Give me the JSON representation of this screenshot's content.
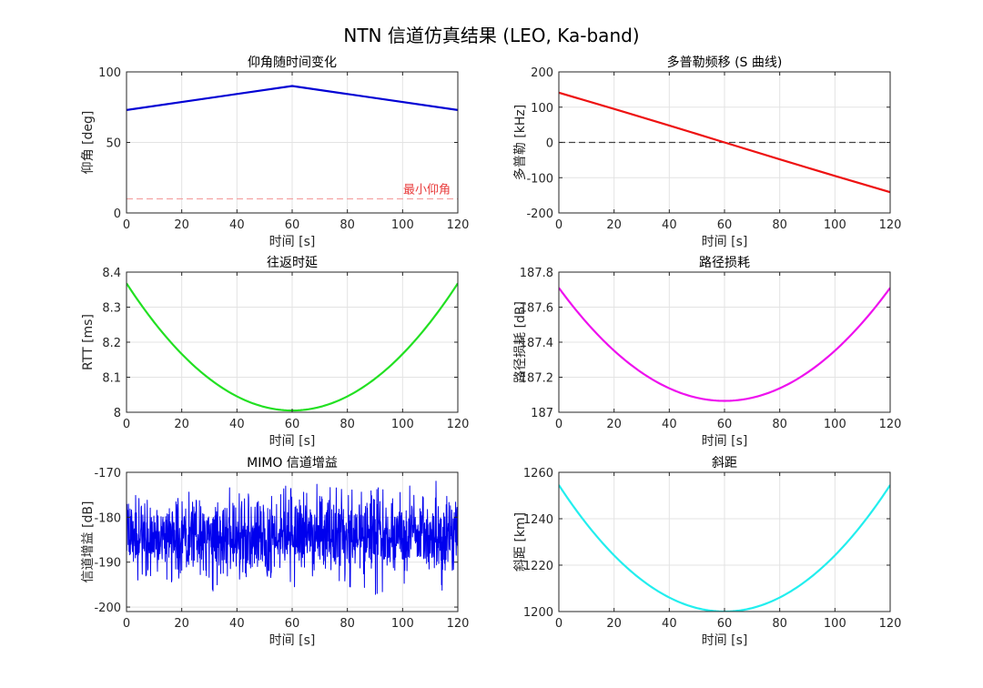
{
  "figure": {
    "title": "NTN 信道仿真结果 (LEO, Ka-band)"
  },
  "chart_data": [
    {
      "id": "elevation",
      "type": "line",
      "title": "仰角随时间变化",
      "xlabel": "时间 [s]",
      "ylabel": "仰角 [deg]",
      "xlim": [
        0,
        120
      ],
      "ylim": [
        0,
        100
      ],
      "xticks": [
        0,
        20,
        40,
        60,
        80,
        100,
        120
      ],
      "yticks": [
        0,
        50,
        100
      ],
      "grid": true,
      "series": [
        {
          "color": "#0000d4",
          "x": [
            0,
            60,
            120
          ],
          "y": [
            73,
            90,
            73
          ]
        }
      ],
      "reference_lines": [
        {
          "y": 10,
          "color": "#f4a3a3",
          "dash": "dashed",
          "label": "最小仰角",
          "label_color": "#e83b3b"
        }
      ]
    },
    {
      "id": "doppler",
      "type": "line",
      "title": "多普勒频移 (S 曲线)",
      "xlabel": "时间 [s]",
      "ylabel": "多普勒 [kHz]",
      "xlim": [
        0,
        120
      ],
      "ylim": [
        -200,
        200
      ],
      "xticks": [
        0,
        20,
        40,
        60,
        80,
        100,
        120
      ],
      "yticks": [
        -200,
        -100,
        0,
        100,
        200
      ],
      "grid": true,
      "series": [
        {
          "color": "#ee1111",
          "x": [
            0,
            20,
            40,
            60,
            80,
            100,
            120
          ],
          "y": [
            141,
            95,
            48,
            0,
            -48,
            -95,
            -141
          ]
        }
      ],
      "reference_lines": [
        {
          "y": 0,
          "color": "#444444",
          "dash": "dashed"
        }
      ]
    },
    {
      "id": "rtt",
      "type": "line",
      "title": "往返时延",
      "xlabel": "时间 [s]",
      "ylabel": "RTT [ms]",
      "xlim": [
        0,
        120
      ],
      "ylim": [
        8,
        8.4
      ],
      "xticks": [
        0,
        20,
        40,
        60,
        80,
        100,
        120
      ],
      "yticks": [
        8,
        8.1,
        8.2,
        8.3,
        8.4
      ],
      "grid": true,
      "series": [
        {
          "color": "#22e022",
          "x": [
            0,
            10,
            20,
            30,
            40,
            50,
            60,
            70,
            80,
            90,
            100,
            110,
            120
          ],
          "y": [
            8.368,
            8.262,
            8.174,
            8.105,
            8.054,
            8.024,
            8.005,
            8.024,
            8.054,
            8.105,
            8.174,
            8.262,
            8.368
          ]
        }
      ]
    },
    {
      "id": "pathloss",
      "type": "line",
      "title": "路径损耗",
      "xlabel": "时间 [s]",
      "ylabel": "路径损耗 [dB]",
      "xlim": [
        0,
        120
      ],
      "ylim": [
        187,
        187.8
      ],
      "xticks": [
        0,
        20,
        40,
        60,
        80,
        100,
        120
      ],
      "yticks": [
        187,
        187.2,
        187.4,
        187.6,
        187.8
      ],
      "grid": true,
      "series": [
        {
          "color": "#ee11ee",
          "x": [
            0,
            10,
            20,
            30,
            40,
            50,
            60,
            70,
            80,
            90,
            100,
            110,
            120
          ],
          "y": [
            187.71,
            187.54,
            187.38,
            187.25,
            187.15,
            187.09,
            187.065,
            187.09,
            187.15,
            187.25,
            187.38,
            187.54,
            187.71
          ]
        }
      ]
    },
    {
      "id": "mimo",
      "type": "line",
      "title": "MIMO 信道增益",
      "xlabel": "时间 [s]",
      "ylabel": "信道增益 [dB]",
      "xlim": [
        0,
        120
      ],
      "ylim": [
        -201,
        -170
      ],
      "xticks": [
        0,
        20,
        40,
        60,
        80,
        100,
        120
      ],
      "yticks": [
        -200,
        -190,
        -180,
        -170
      ],
      "grid": true,
      "series": [
        {
          "color": "#0000ee",
          "x_start": 0,
          "x_end": 120,
          "mean": -184,
          "std": 4.5,
          "n_points": 1200
        }
      ]
    },
    {
      "id": "slant_range",
      "type": "line",
      "title": "斜距",
      "xlabel": "时间 [s]",
      "ylabel": "斜距 [km]",
      "xlim": [
        0,
        120
      ],
      "ylim": [
        1200,
        1260
      ],
      "xticks": [
        0,
        20,
        40,
        60,
        80,
        100,
        120
      ],
      "yticks": [
        1200,
        1220,
        1240,
        1260
      ],
      "grid": true,
      "series": [
        {
          "color": "#22eeee",
          "x": [
            0,
            10,
            20,
            30,
            40,
            50,
            60,
            70,
            80,
            90,
            100,
            110,
            120
          ],
          "y": [
            1254.5,
            1238.5,
            1225.2,
            1214.3,
            1206.5,
            1201.6,
            1200.0,
            1201.6,
            1206.5,
            1214.3,
            1225.2,
            1238.5,
            1254.5
          ]
        }
      ]
    }
  ]
}
